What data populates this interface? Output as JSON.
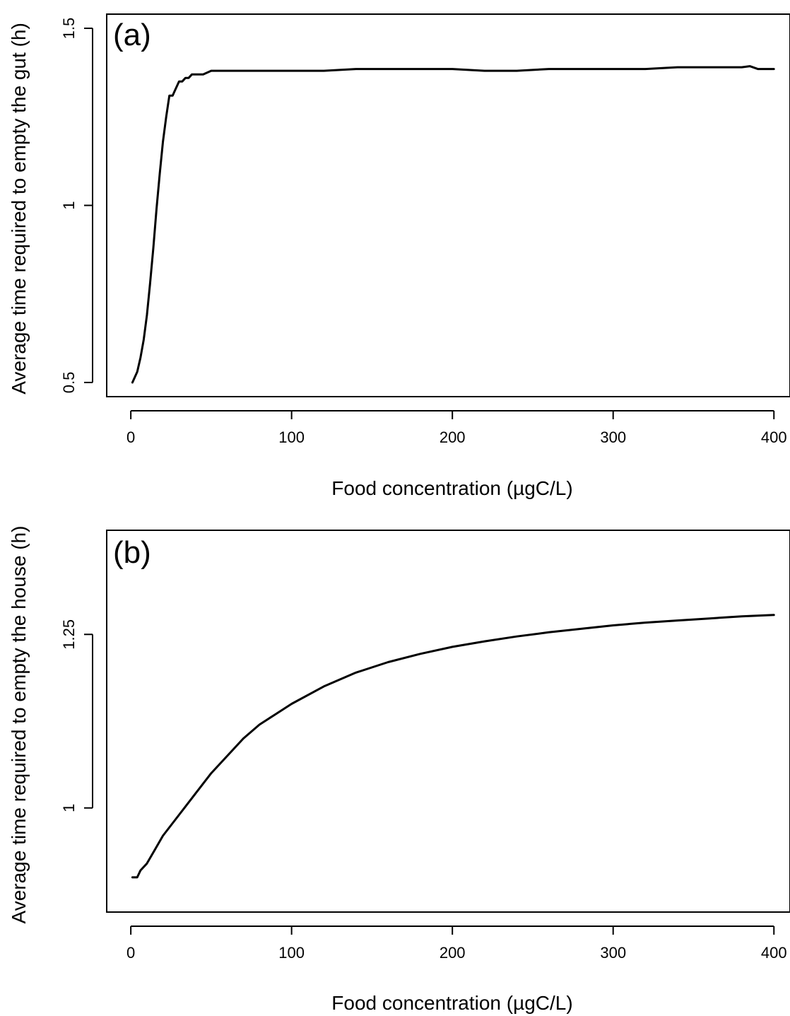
{
  "chart_data": [
    {
      "type": "line",
      "panel_label": "(a)",
      "xlabel": "Food concentration (µgC/L)",
      "ylabel": "Average time required to empty the gut (h)",
      "xlim": [
        -15,
        410
      ],
      "ylim": [
        0.46,
        1.54
      ],
      "x_ticks": [
        0,
        100,
        200,
        300,
        400
      ],
      "x_tick_labels": [
        "0",
        "100",
        "200",
        "300",
        "400"
      ],
      "y_ticks": [
        0.5,
        1,
        1.5
      ],
      "y_tick_labels": [
        "0.5",
        "1",
        "1.5"
      ],
      "grid": false,
      "series": [
        {
          "x": [
            1,
            4,
            6,
            8,
            10,
            12,
            14,
            16,
            18,
            20,
            22,
            24,
            26,
            28,
            30,
            32,
            34,
            36,
            38,
            40,
            45,
            50,
            55,
            60,
            70,
            80,
            90,
            100,
            120,
            140,
            160,
            180,
            200,
            220,
            240,
            260,
            280,
            300,
            320,
            340,
            360,
            380,
            385,
            390,
            400
          ],
          "y": [
            0.5,
            0.53,
            0.57,
            0.62,
            0.69,
            0.78,
            0.88,
            0.99,
            1.09,
            1.18,
            1.25,
            1.31,
            1.31,
            1.33,
            1.35,
            1.35,
            1.36,
            1.36,
            1.37,
            1.37,
            1.37,
            1.38,
            1.38,
            1.38,
            1.38,
            1.38,
            1.38,
            1.38,
            1.38,
            1.385,
            1.385,
            1.385,
            1.385,
            1.38,
            1.38,
            1.385,
            1.385,
            1.385,
            1.385,
            1.39,
            1.39,
            1.39,
            1.393,
            1.385,
            1.385
          ]
        }
      ]
    },
    {
      "type": "line",
      "panel_label": "(b)",
      "xlabel": "Food concentration (µgC/L)",
      "ylabel": "Average time required to empty the house (h)",
      "xlim": [
        -15,
        410
      ],
      "ylim": [
        0.85,
        1.4
      ],
      "x_ticks": [
        0,
        100,
        200,
        300,
        400
      ],
      "x_tick_labels": [
        "0",
        "100",
        "200",
        "300",
        "400"
      ],
      "y_ticks": [
        1,
        1.25
      ],
      "y_tick_labels": [
        "1",
        "1.25"
      ],
      "grid": false,
      "series": [
        {
          "x": [
            1,
            4,
            6,
            10,
            15,
            20,
            30,
            40,
            50,
            60,
            70,
            80,
            90,
            100,
            120,
            140,
            160,
            180,
            200,
            220,
            240,
            260,
            280,
            300,
            320,
            340,
            360,
            380,
            400
          ],
          "y": [
            0.9,
            0.9,
            0.91,
            0.92,
            0.94,
            0.96,
            0.99,
            1.02,
            1.05,
            1.075,
            1.1,
            1.12,
            1.135,
            1.15,
            1.175,
            1.195,
            1.21,
            1.222,
            1.232,
            1.24,
            1.247,
            1.253,
            1.258,
            1.263,
            1.267,
            1.27,
            1.273,
            1.276,
            1.278
          ]
        }
      ]
    }
  ]
}
